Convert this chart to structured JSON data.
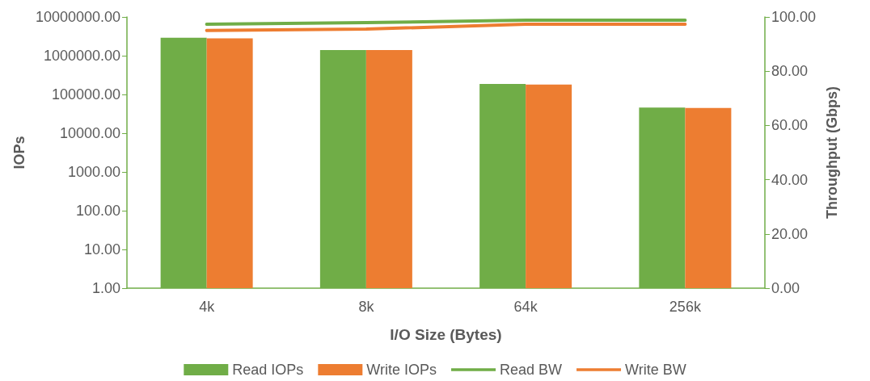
{
  "chart_data": {
    "type": "bar",
    "xlabel": "I/O Size (Bytes)",
    "ylabel": "IOPs",
    "y2label": "Throughput (Gbps)",
    "categories": [
      "4k",
      "8k",
      "64k",
      "256k"
    ],
    "series": [
      {
        "name": "Read IOPs",
        "color": "#70ad47",
        "values": [
          2900000,
          1400000,
          186000,
          46000
        ]
      },
      {
        "name": "Write IOPs",
        "color": "#ed7d31",
        "values": [
          2800000,
          1400000,
          180000,
          45000
        ]
      },
      {
        "name": "Read BW",
        "type": "line",
        "axis": "y2",
        "color": "#70ad47",
        "values": [
          97.3,
          97.9,
          98.8,
          98.8
        ]
      },
      {
        "name": "Write BW",
        "type": "line",
        "axis": "y2",
        "color": "#ed7d31",
        "values": [
          95,
          95.5,
          97.3,
          97.3
        ]
      }
    ],
    "log": "y",
    "ylim": [
      1,
      10000000
    ],
    "yticks": [
      {
        "value": 1,
        "label": "1.00"
      },
      {
        "value": 10,
        "label": "10.00"
      },
      {
        "value": 100,
        "label": "100.00"
      },
      {
        "value": 1000,
        "label": "1000.00"
      },
      {
        "value": 10000,
        "label": "10000.00"
      },
      {
        "value": 100000,
        "label": "100000.00"
      },
      {
        "value": 1000000,
        "label": "1000000.00"
      },
      {
        "value": 10000000,
        "label": "10000000.00"
      }
    ],
    "y2lim": [
      0,
      100
    ],
    "y2ticks": [
      {
        "value": 0,
        "label": "0.00"
      },
      {
        "value": 20,
        "label": "20.00"
      },
      {
        "value": 40,
        "label": "40.00"
      },
      {
        "value": 60,
        "label": "60.00"
      },
      {
        "value": 80,
        "label": "80.00"
      },
      {
        "value": 100,
        "label": "100.00"
      }
    ],
    "grid": false,
    "legend": "bottom",
    "marker": "none",
    "line_style": "solid"
  }
}
